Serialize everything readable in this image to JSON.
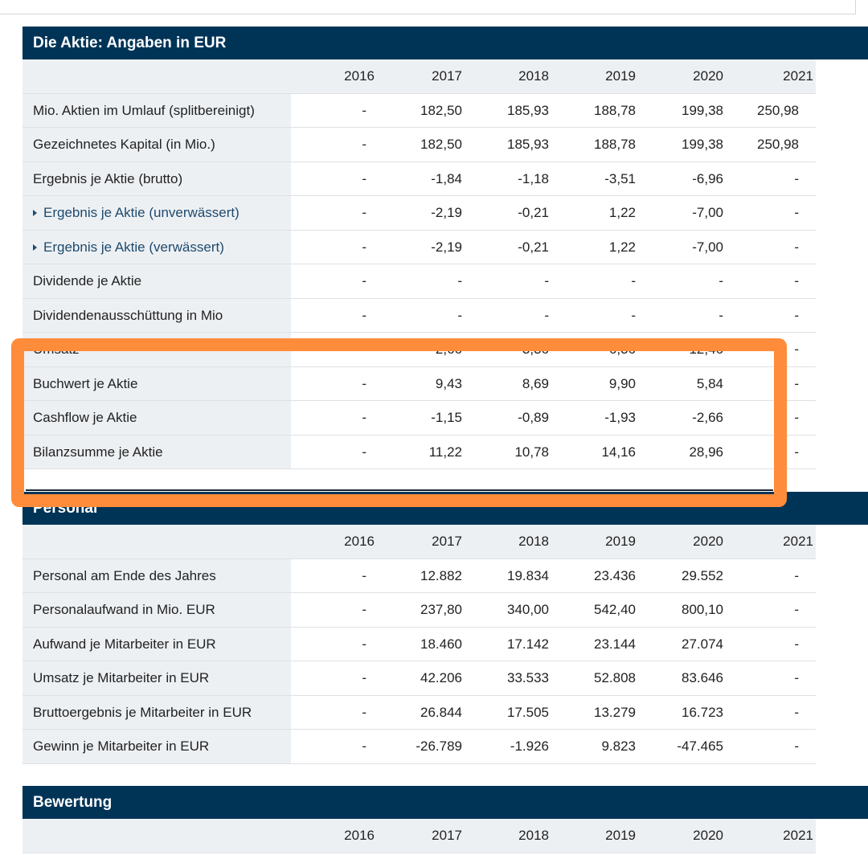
{
  "years": [
    "2016",
    "2017",
    "2018",
    "2019",
    "2020",
    "2021"
  ],
  "sections": [
    {
      "title": "Die Aktie: Angaben in EUR",
      "rows": [
        {
          "label": "Mio. Aktien im Umlauf (splitbereinigt)",
          "values": [
            "-",
            "182,50",
            "185,93",
            "188,78",
            "199,38",
            "250,98"
          ]
        },
        {
          "label": "Gezeichnetes Kapital (in Mio.)",
          "values": [
            "-",
            "182,50",
            "185,93",
            "188,78",
            "199,38",
            "250,98"
          ]
        },
        {
          "label": "Ergebnis je Aktie (brutto)",
          "values": [
            "-",
            "-1,84",
            "-1,18",
            "-3,51",
            "-6,96",
            "-"
          ]
        },
        {
          "label": "Ergebnis je Aktie (unverwässert)",
          "link": true,
          "values": [
            "-",
            "-2,19",
            "-0,21",
            "1,22",
            "-7,00",
            "-"
          ]
        },
        {
          "label": "Ergebnis je Aktie (verwässert)",
          "link": true,
          "values": [
            "-",
            "-2,19",
            "-0,21",
            "1,22",
            "-7,00",
            "-"
          ]
        },
        {
          "label": "Dividende je Aktie",
          "values": [
            "-",
            "-",
            "-",
            "-",
            "-",
            "-"
          ]
        },
        {
          "label": "Dividendenausschüttung in Mio",
          "values": [
            "-",
            "-",
            "-",
            "-",
            "-",
            "-"
          ]
        },
        {
          "label": "Umsatz",
          "values": [
            "-",
            "2,66",
            "3,36",
            "6,36",
            "12,46",
            "-"
          ]
        },
        {
          "label": "Buchwert je Aktie",
          "values": [
            "-",
            "9,43",
            "8,69",
            "9,90",
            "5,84",
            "-"
          ]
        },
        {
          "label": "Cashflow je Aktie",
          "values": [
            "-",
            "-1,15",
            "-0,89",
            "-1,93",
            "-2,66",
            "-"
          ]
        },
        {
          "label": "Bilanzsumme je Aktie",
          "values": [
            "-",
            "11,22",
            "10,78",
            "14,16",
            "28,96",
            "-"
          ]
        }
      ]
    },
    {
      "title": "Personal",
      "rows": [
        {
          "label": "Personal am Ende des Jahres",
          "values": [
            "-",
            "12.882",
            "19.834",
            "23.436",
            "29.552",
            "-"
          ]
        },
        {
          "label": "Personalaufwand in Mio. EUR",
          "values": [
            "-",
            "237,80",
            "340,00",
            "542,40",
            "800,10",
            "-"
          ]
        },
        {
          "label": "Aufwand je Mitarbeiter in EUR",
          "values": [
            "-",
            "18.460",
            "17.142",
            "23.144",
            "27.074",
            "-"
          ]
        },
        {
          "label": "Umsatz je Mitarbeiter in EUR",
          "values": [
            "-",
            "42.206",
            "33.533",
            "52.808",
            "83.646",
            "-"
          ]
        },
        {
          "label": "Bruttoergebnis je Mitarbeiter in EUR",
          "values": [
            "-",
            "26.844",
            "17.505",
            "13.279",
            "16.723",
            "-"
          ]
        },
        {
          "label": "Gewinn je Mitarbeiter in EUR",
          "values": [
            "-",
            "-26.789",
            "-1.926",
            "9.823",
            "-47.465",
            "-"
          ]
        }
      ]
    },
    {
      "title": "Bewertung",
      "rows": []
    }
  ]
}
